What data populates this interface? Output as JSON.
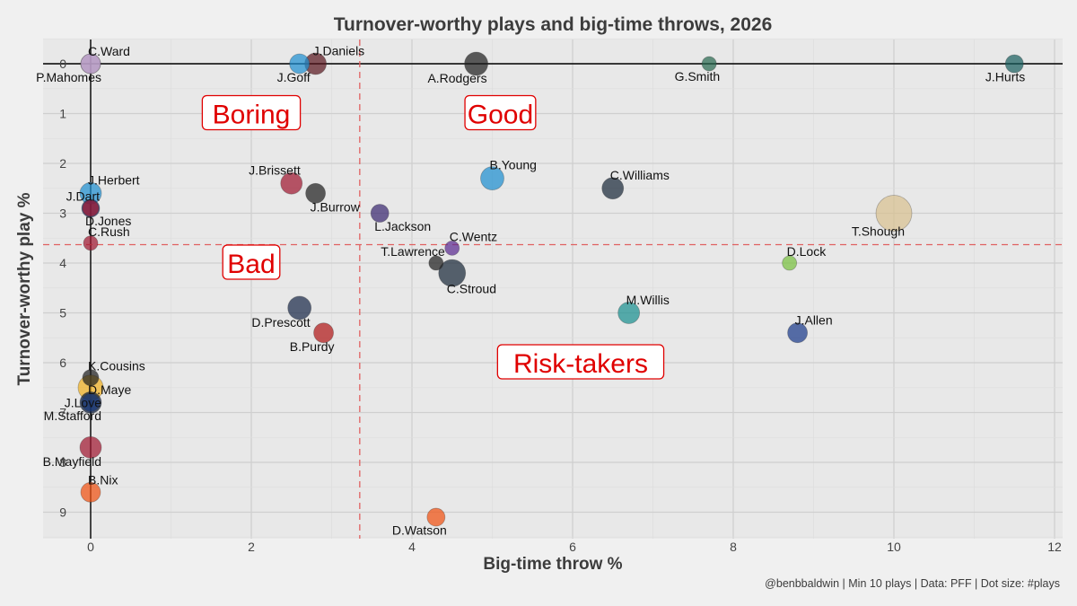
{
  "chart_data": {
    "type": "scatter",
    "title": "Turnover-worthy plays and big-time throws, 2026",
    "xlabel": "Big-time throw %",
    "ylabel": "Turnover-worthy play %",
    "caption": "@benbbaldwin | Min 10 plays | Data: PFF | Dot size: #plays",
    "xlim": [
      -0.6,
      12.2
    ],
    "ylim": [
      9.55,
      -0.45
    ],
    "y_reversed": true,
    "xticks": [
      0,
      2,
      4,
      6,
      8,
      10,
      12
    ],
    "yticks": [
      0,
      1,
      2,
      3,
      4,
      5,
      6,
      7,
      8,
      9
    ],
    "grid": true,
    "reference_lines": {
      "x_mean": 3.35,
      "y_mean": 3.63
    },
    "quadrant_labels": [
      {
        "text": "Boring",
        "x": 2.0,
        "y": 1.0
      },
      {
        "text": "Good",
        "x": 5.1,
        "y": 1.0
      },
      {
        "text": "Bad",
        "x": 2.0,
        "y": 4.0
      },
      {
        "text": "Risk-takers",
        "x": 6.1,
        "y": 6.0
      }
    ],
    "points": [
      {
        "name": "C.Ward",
        "x": 0.0,
        "y": 0.0,
        "size": 11,
        "color": "#7b8fd0",
        "label_pos": "above-right"
      },
      {
        "name": "P.Mahomes",
        "x": 0.0,
        "y": 0.0,
        "size": 11,
        "color": "#c8a0c0",
        "label_pos": "below-left"
      },
      {
        "name": "J.Goff",
        "x": 2.6,
        "y": 0.0,
        "size": 11,
        "color": "#1f8fd0",
        "label_pos": "below-left"
      },
      {
        "name": "J.Daniels",
        "x": 2.8,
        "y": 0.0,
        "size": 12,
        "color": "#5a1820",
        "label_pos": "above-right"
      },
      {
        "name": "A.Rodgers",
        "x": 4.8,
        "y": 0.0,
        "size": 13,
        "color": "#202020",
        "label_pos": "below-left"
      },
      {
        "name": "G.Smith",
        "x": 7.7,
        "y": 0.0,
        "size": 8,
        "color": "#2a6a50",
        "label_pos": "below-left"
      },
      {
        "name": "J.Hurts",
        "x": 11.5,
        "y": 0.0,
        "size": 10,
        "color": "#1a6060",
        "label_pos": "below-left"
      },
      {
        "name": "B.Young",
        "x": 5.0,
        "y": 2.3,
        "size": 13,
        "color": "#1f8fd0",
        "label_pos": "above-right"
      },
      {
        "name": "C.Williams",
        "x": 6.5,
        "y": 2.5,
        "size": 12,
        "color": "#1a2a3a",
        "label_pos": "above-right"
      },
      {
        "name": "J.Herbert",
        "x": 0.0,
        "y": 2.6,
        "size": 12,
        "color": "#1f8fd0",
        "label_pos": "above-right"
      },
      {
        "name": "J.Brissett",
        "x": 2.5,
        "y": 2.4,
        "size": 12,
        "color": "#a01830",
        "label_pos": "above-left"
      },
      {
        "name": "J.Burrow",
        "x": 2.8,
        "y": 2.6,
        "size": 11,
        "color": "#202020",
        "label_pos": "below-right"
      },
      {
        "name": "J.Dart",
        "x": 0.0,
        "y": 2.9,
        "size": 10,
        "color": "#1a2a6a",
        "label_pos": "above-left"
      },
      {
        "name": "D.Jones",
        "x": 0.0,
        "y": 2.9,
        "size": 9,
        "color": "#a01830",
        "label_pos": "below-right"
      },
      {
        "name": "L.Jackson",
        "x": 3.6,
        "y": 3.0,
        "size": 10,
        "color": "#3a2870",
        "label_pos": "below-right"
      },
      {
        "name": "T.Shough",
        "x": 10.0,
        "y": 3.0,
        "size": 20,
        "color": "#d8c090",
        "label_pos": "below-left"
      },
      {
        "name": "C.Rush",
        "x": 0.0,
        "y": 3.6,
        "size": 8,
        "color": "#a01830",
        "label_pos": "above-right"
      },
      {
        "name": "C.Wentz",
        "x": 4.5,
        "y": 3.7,
        "size": 8,
        "color": "#5a2a90",
        "label_pos": "above-right"
      },
      {
        "name": "T.Lawrence",
        "x": 4.3,
        "y": 4.0,
        "size": 8,
        "color": "#202020",
        "label_pos": "above-left"
      },
      {
        "name": "D.Lock",
        "x": 8.7,
        "y": 4.0,
        "size": 8,
        "color": "#78c040",
        "label_pos": "above-right"
      },
      {
        "name": "C.Stroud",
        "x": 4.5,
        "y": 4.2,
        "size": 15,
        "color": "#1a2a3a",
        "label_pos": "below-right"
      },
      {
        "name": "D.Prescott",
        "x": 2.6,
        "y": 4.9,
        "size": 13,
        "color": "#1a2a4a",
        "label_pos": "below-left"
      },
      {
        "name": "M.Willis",
        "x": 6.7,
        "y": 5.0,
        "size": 12,
        "color": "#1a9090",
        "label_pos": "above-right"
      },
      {
        "name": "B.Purdy",
        "x": 2.9,
        "y": 5.4,
        "size": 11,
        "color": "#b01818",
        "label_pos": "below-left"
      },
      {
        "name": "J.Allen",
        "x": 8.8,
        "y": 5.4,
        "size": 11,
        "color": "#1a3a8a",
        "label_pos": "above-right"
      },
      {
        "name": "K.Cousins",
        "x": 0.0,
        "y": 6.3,
        "size": 9,
        "color": "#202020",
        "label_pos": "above-right"
      },
      {
        "name": "J.Love",
        "x": 0.0,
        "y": 6.5,
        "size": 14,
        "color": "#f0b020",
        "label_pos": "below-left"
      },
      {
        "name": "D.Maye",
        "x": 0.0,
        "y": 6.8,
        "size": 12,
        "color": "#0a1a3a",
        "label_pos": "above-right"
      },
      {
        "name": "M.Stafford",
        "x": 0.0,
        "y": 6.8,
        "size": 10,
        "color": "#1a3a7a",
        "label_pos": "below-left"
      },
      {
        "name": "B.Mayfield",
        "x": 0.0,
        "y": 7.7,
        "size": 12,
        "color": "#a01830",
        "label_pos": "below-left"
      },
      {
        "name": "B.Nix",
        "x": 0.0,
        "y": 8.6,
        "size": 11,
        "color": "#f05010",
        "label_pos": "above-right"
      },
      {
        "name": "D.Watson",
        "x": 4.3,
        "y": 9.1,
        "size": 10,
        "color": "#f05010",
        "label_pos": "below-left"
      }
    ]
  }
}
